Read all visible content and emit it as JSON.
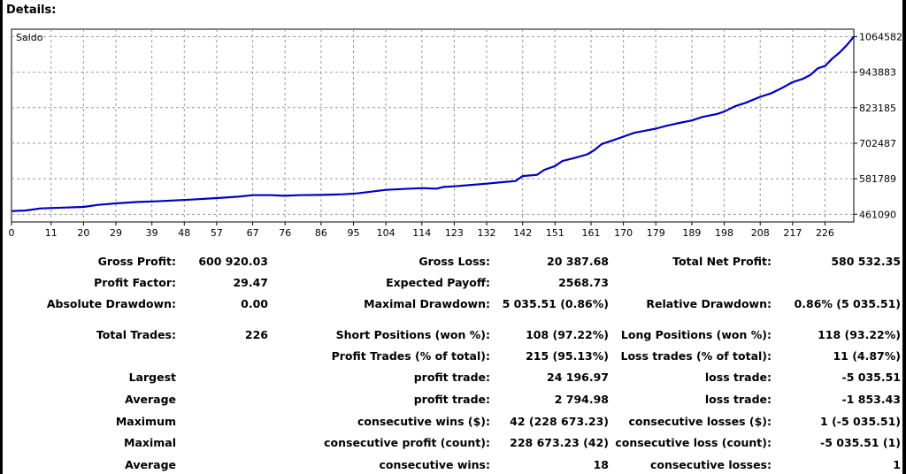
{
  "header": {
    "title": "Details:"
  },
  "chart_data": {
    "type": "line",
    "title": "Saldo",
    "x_ticks": [
      0,
      11,
      20,
      29,
      39,
      48,
      57,
      67,
      76,
      86,
      95,
      104,
      114,
      123,
      132,
      142,
      151,
      161,
      170,
      179,
      189,
      198,
      208,
      217,
      226
    ],
    "y_ticks": [
      461090,
      581789,
      702487,
      823185,
      943883,
      1064582
    ],
    "xlim": [
      0,
      234
    ],
    "ylim": [
      435000,
      1090000
    ],
    "grid": true,
    "series": [
      {
        "color": "#0000c0",
        "points": [
          [
            0,
            472000
          ],
          [
            4,
            474000
          ],
          [
            8,
            481000
          ],
          [
            15,
            484000
          ],
          [
            20,
            486000
          ],
          [
            24,
            493000
          ],
          [
            29,
            498000
          ],
          [
            35,
            503000
          ],
          [
            40,
            505000
          ],
          [
            45,
            508000
          ],
          [
            50,
            511000
          ],
          [
            57,
            516000
          ],
          [
            63,
            521000
          ],
          [
            67,
            526000
          ],
          [
            72,
            526000
          ],
          [
            76,
            524000
          ],
          [
            80,
            526000
          ],
          [
            86,
            527000
          ],
          [
            92,
            529000
          ],
          [
            96,
            532000
          ],
          [
            100,
            538000
          ],
          [
            104,
            544000
          ],
          [
            109,
            547000
          ],
          [
            114,
            550000
          ],
          [
            118,
            548000
          ],
          [
            120,
            554000
          ],
          [
            123,
            556000
          ],
          [
            127,
            560000
          ],
          [
            132,
            565000
          ],
          [
            136,
            570000
          ],
          [
            140,
            574000
          ],
          [
            142,
            591000
          ],
          [
            146,
            595000
          ],
          [
            148,
            612000
          ],
          [
            151,
            625000
          ],
          [
            153,
            642000
          ],
          [
            156,
            651000
          ],
          [
            160,
            665000
          ],
          [
            162,
            680000
          ],
          [
            164,
            700000
          ],
          [
            167,
            712000
          ],
          [
            170,
            725000
          ],
          [
            173,
            738000
          ],
          [
            176,
            745000
          ],
          [
            179,
            752000
          ],
          [
            182,
            762000
          ],
          [
            185,
            770000
          ],
          [
            189,
            780000
          ],
          [
            192,
            792000
          ],
          [
            196,
            802000
          ],
          [
            198,
            810000
          ],
          [
            201,
            828000
          ],
          [
            204,
            840000
          ],
          [
            208,
            860000
          ],
          [
            211,
            872000
          ],
          [
            214,
            890000
          ],
          [
            217,
            910000
          ],
          [
            220,
            922000
          ],
          [
            222,
            935000
          ],
          [
            224,
            957000
          ],
          [
            226,
            965000
          ],
          [
            228,
            990000
          ],
          [
            230,
            1010000
          ],
          [
            232,
            1035000
          ],
          [
            234,
            1064582
          ]
        ]
      }
    ]
  },
  "stats": {
    "gross_profit_label": "Gross Profit:",
    "gross_profit": "600 920.03",
    "gross_loss_label": "Gross Loss:",
    "gross_loss": "20 387.68",
    "total_net_profit_label": "Total Net Profit:",
    "total_net_profit": "580 532.35",
    "profit_factor_label": "Profit Factor:",
    "profit_factor": "29.47",
    "expected_payoff_label": "Expected Payoff:",
    "expected_payoff": "2568.73",
    "absolute_drawdown_label": "Absolute Drawdown:",
    "absolute_drawdown": "0.00",
    "maximal_drawdown_label": "Maximal Drawdown:",
    "maximal_drawdown": "5 035.51 (0.86%)",
    "relative_drawdown_label": "Relative Drawdown:",
    "relative_drawdown": "0.86% (5 035.51)",
    "total_trades_label": "Total Trades:",
    "total_trades": "226",
    "short_positions_label": "Short Positions (won %):",
    "short_positions": "108 (97.22%)",
    "long_positions_label": "Long Positions (won %):",
    "long_positions": "118 (93.22%)",
    "profit_trades_label": "Profit Trades (% of total):",
    "profit_trades": "215 (95.13%)",
    "loss_trades_label": "Loss trades (% of total):",
    "loss_trades": "11 (4.87%)",
    "largest_label": "Largest",
    "largest_profit_label": "profit trade:",
    "largest_profit": "24 196.97",
    "largest_loss_label": "loss trade:",
    "largest_loss": "-5 035.51",
    "average_label": "Average",
    "average_profit_label": "profit trade:",
    "average_profit": "2 794.98",
    "average_loss_label": "loss trade:",
    "average_loss": "-1 853.43",
    "maximum_label": "Maximum",
    "max_consec_wins_label": "consecutive wins ($):",
    "max_consec_wins": "42 (228 673.23)",
    "max_consec_losses_label": "consecutive losses ($):",
    "max_consec_losses": "1 (-5 035.51)",
    "maximal_label": "Maximal",
    "maximal_consec_profit_label": "consecutive profit (count):",
    "maximal_consec_profit": "228 673.23 (42)",
    "maximal_consec_loss_label": "consecutive loss (count):",
    "maximal_consec_loss": "-5 035.51 (1)",
    "average2_label": "Average",
    "avg_consec_wins_label": "consecutive wins:",
    "avg_consec_wins": "18",
    "avg_consec_losses_label": "consecutive losses:",
    "avg_consec_losses": "1"
  }
}
